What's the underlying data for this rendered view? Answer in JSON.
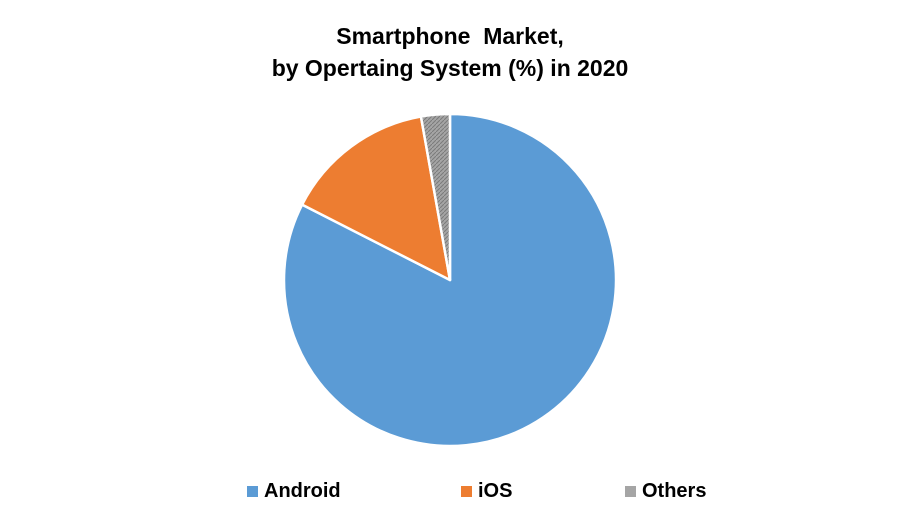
{
  "chart_data": {
    "type": "pie",
    "title": "Smartphone  Market,",
    "subtitle": "by Opertaing System (%) in 2020",
    "slices": [
      {
        "label": "Android",
        "value": 82.5,
        "color": "#5B9BD5"
      },
      {
        "label": "iOS",
        "value": 14.7,
        "color": "#ED7D31"
      },
      {
        "label": "Others",
        "value": 2.8,
        "color": "#A5A5A5"
      }
    ],
    "legend_position": "bottom"
  }
}
